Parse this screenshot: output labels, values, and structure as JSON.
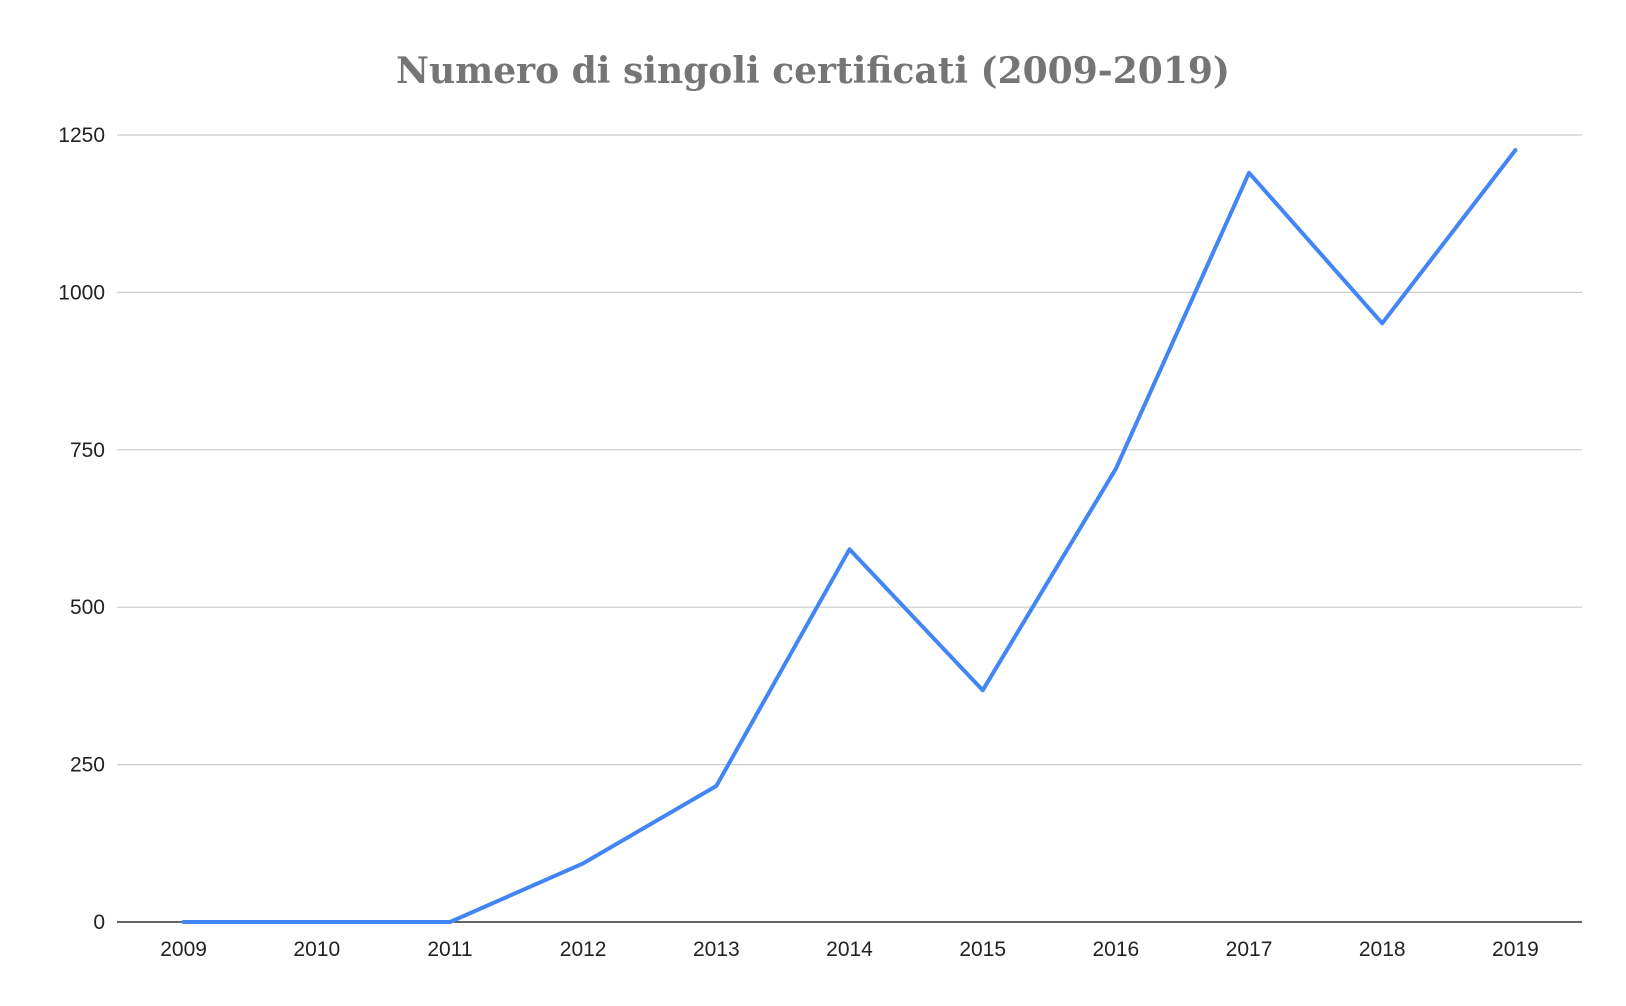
{
  "chart_data": {
    "type": "line",
    "title": "Numero di singoli certificati (2009-2019)",
    "xlabel": "",
    "ylabel": "",
    "categories": [
      "2009",
      "2010",
      "2011",
      "2012",
      "2013",
      "2014",
      "2015",
      "2016",
      "2017",
      "2018",
      "2019"
    ],
    "series": [
      {
        "values": [
          0,
          0,
          0,
          93,
          216,
          592,
          368,
          720,
          1190,
          951,
          1226
        ],
        "color": "#4285f4"
      }
    ],
    "ylim": [
      0,
      1250
    ],
    "yticks": [
      "0",
      "250",
      "500",
      "750",
      "1000",
      "1250"
    ],
    "grid": true,
    "legend": "none"
  }
}
